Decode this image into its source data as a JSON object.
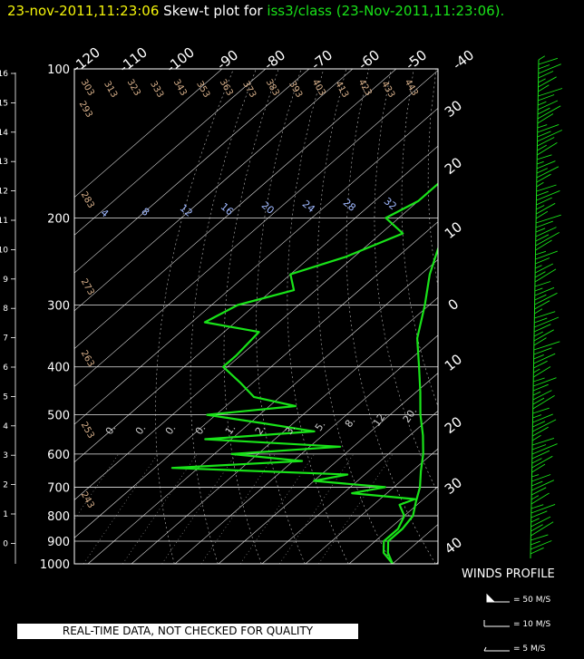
{
  "header": {
    "time": "23-nov-2011,11:23:06",
    "mid": "Skew-t plot for",
    "site": "iss3/class (23-Nov-2011,11:23:06)."
  },
  "disclaimer": "REAL-TIME DATA, NOT CHECKED FOR QUALITY",
  "winds": {
    "title": "WINDS PROFILE",
    "legend": [
      "= 50 M/S",
      "= 10 M/S",
      "= 5 M/S"
    ]
  },
  "colors": {
    "trace": "#19e319",
    "title_time": "#f4f40a",
    "grid": "#ffffff"
  },
  "chart_data": {
    "type": "line",
    "title": "Skew-t plot for iss3/class (23-Nov-2011,11:23:06).",
    "pressure_ticks": [
      "100",
      "200",
      "300",
      "400",
      "500",
      "600",
      "700",
      "800",
      "900",
      "1000"
    ],
    "pressure_values": [
      100,
      200,
      300,
      400,
      500,
      600,
      700,
      800,
      900,
      1000
    ],
    "height_ticks": [
      "16",
      "15",
      "14",
      "13",
      "12",
      "11",
      "10",
      "9",
      "8",
      "7",
      "6",
      "5",
      "4",
      "3",
      "2",
      "1",
      "0"
    ],
    "top_temp_labels": [
      "-120",
      "-110",
      "-100",
      "-90",
      "-80",
      "-70",
      "-60",
      "-50",
      "-40"
    ],
    "right_temp_labels": [
      "30",
      "20",
      "10",
      "0",
      "10",
      "20",
      "30",
      "40"
    ],
    "theta_labels": [
      "303",
      "313",
      "323",
      "333",
      "343",
      "353",
      "363",
      "373",
      "383",
      "393",
      "403",
      "413",
      "423",
      "433",
      "443"
    ],
    "theta_left_labels": [
      "293",
      "283",
      "273",
      "263",
      "253",
      "243"
    ],
    "mixing_ratio_labels": [
      "4",
      "8",
      "12",
      "16",
      "20",
      "24",
      "28",
      "32"
    ],
    "moist_adiabat_labels": [
      "0.",
      "0.",
      "0.",
      "0.",
      "1.",
      "2.",
      "3.",
      "5.",
      "8.",
      "12.",
      "20."
    ],
    "series": [
      {
        "values": [
          [
            100,
            -78
          ],
          [
            120,
            -74
          ],
          [
            150,
            -66
          ],
          [
            180,
            -61
          ],
          [
            200,
            -58
          ],
          [
            230,
            -53
          ],
          [
            260,
            -48
          ],
          [
            300,
            -41
          ],
          [
            350,
            -34
          ],
          [
            400,
            -26
          ],
          [
            450,
            -19
          ],
          [
            500,
            -13
          ],
          [
            550,
            -7
          ],
          [
            600,
            -2
          ],
          [
            650,
            2
          ],
          [
            700,
            6
          ],
          [
            750,
            9
          ],
          [
            800,
            12
          ],
          [
            850,
            13
          ],
          [
            900,
            13
          ],
          [
            950,
            16
          ],
          [
            1000,
            20
          ]
        ]
      },
      {
        "values": [
          [
            100,
            -78
          ],
          [
            130,
            -75
          ],
          [
            160,
            -70
          ],
          [
            185,
            -70
          ],
          [
            200,
            -73
          ],
          [
            215,
            -65
          ],
          [
            240,
            -72
          ],
          [
            260,
            -80
          ],
          [
            280,
            -75
          ],
          [
            300,
            -84
          ],
          [
            325,
            -87
          ],
          [
            340,
            -72
          ],
          [
            380,
            -71
          ],
          [
            400,
            -71
          ],
          [
            430,
            -63
          ],
          [
            460,
            -56
          ],
          [
            480,
            -44
          ],
          [
            500,
            -62
          ],
          [
            520,
            -47
          ],
          [
            540,
            -33
          ],
          [
            560,
            -56
          ],
          [
            580,
            -23
          ],
          [
            600,
            -46
          ],
          [
            620,
            -28
          ],
          [
            640,
            -56
          ],
          [
            660,
            -14
          ],
          [
            680,
            -20
          ],
          [
            700,
            -2
          ],
          [
            720,
            -8
          ],
          [
            740,
            8
          ],
          [
            760,
            6
          ],
          [
            800,
            10
          ],
          [
            850,
            12
          ],
          [
            900,
            12
          ],
          [
            950,
            15
          ],
          [
            1000,
            20
          ]
        ]
      }
    ]
  }
}
